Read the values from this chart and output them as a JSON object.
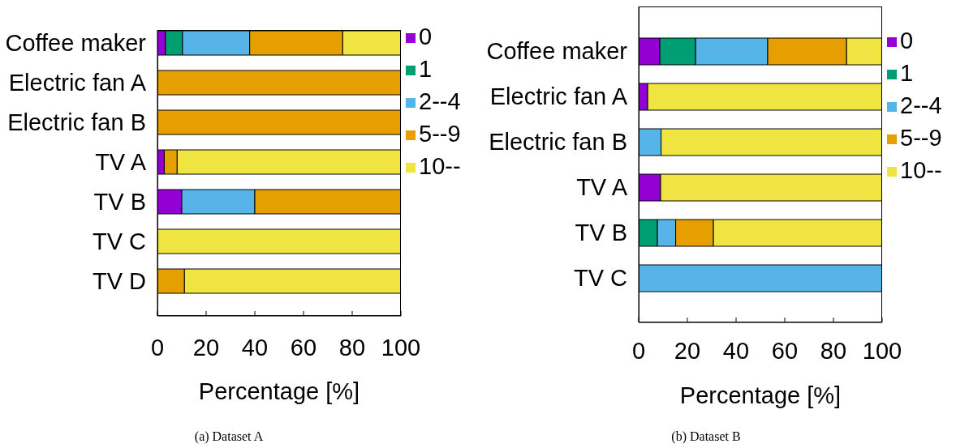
{
  "chart_data": [
    {
      "type": "bar",
      "orientation": "horizontal",
      "stacked": true,
      "title": "(a) Dataset A",
      "xlabel": "Percentage [%]",
      "categories": [
        "Coffee maker",
        "Electric fan A",
        "Electric fan B",
        "TV A",
        "TV B",
        "TV C",
        "TV D"
      ],
      "series": [
        {
          "name": "0",
          "color": "#9400d3",
          "values": [
            3.3,
            0,
            0,
            2.8,
            10,
            0,
            0
          ]
        },
        {
          "name": "1",
          "color": "#009e73",
          "values": [
            7.0,
            0,
            0,
            0,
            0,
            0,
            0
          ]
        },
        {
          "name": "2--4",
          "color": "#56b4e9",
          "values": [
            27.6,
            0,
            0,
            0,
            30,
            0,
            0
          ]
        },
        {
          "name": "5--9",
          "color": "#e69f00",
          "values": [
            38.2,
            100,
            100,
            5.3,
            60,
            0,
            11.1
          ]
        },
        {
          "name": "10--",
          "color": "#f0e442",
          "values": [
            23.9,
            0,
            0,
            91.9,
            0,
            100,
            88.9
          ]
        }
      ],
      "xlim": [
        0,
        100
      ],
      "xticks": [
        0,
        20,
        40,
        60,
        80,
        100
      ],
      "legend": "top right"
    },
    {
      "type": "bar",
      "orientation": "horizontal",
      "stacked": true,
      "title": "(b) Dataset B",
      "xlabel": "Percentage [%]",
      "categories": [
        "Coffee maker",
        "Electric fan A",
        "Electric fan B",
        "TV A",
        "TV B",
        "TV C"
      ],
      "series": [
        {
          "name": "0",
          "color": "#9400d3",
          "values": [
            8.7,
            3.7,
            0,
            9.0,
            0,
            0
          ]
        },
        {
          "name": "1",
          "color": "#009e73",
          "values": [
            14.7,
            0,
            0,
            0,
            7.7,
            0
          ]
        },
        {
          "name": "2--4",
          "color": "#56b4e9",
          "values": [
            29.6,
            0,
            9.2,
            0,
            7.5,
            100
          ]
        },
        {
          "name": "5--9",
          "color": "#e69f00",
          "values": [
            32.4,
            0,
            0,
            0,
            15.5,
            0
          ]
        },
        {
          "name": "10--",
          "color": "#f0e442",
          "values": [
            14.6,
            96.3,
            90.8,
            91.0,
            69.3,
            0
          ]
        }
      ],
      "xlim": [
        0,
        100
      ],
      "xticks": [
        0,
        20,
        40,
        60,
        80,
        100
      ],
      "legend": "top right"
    }
  ]
}
